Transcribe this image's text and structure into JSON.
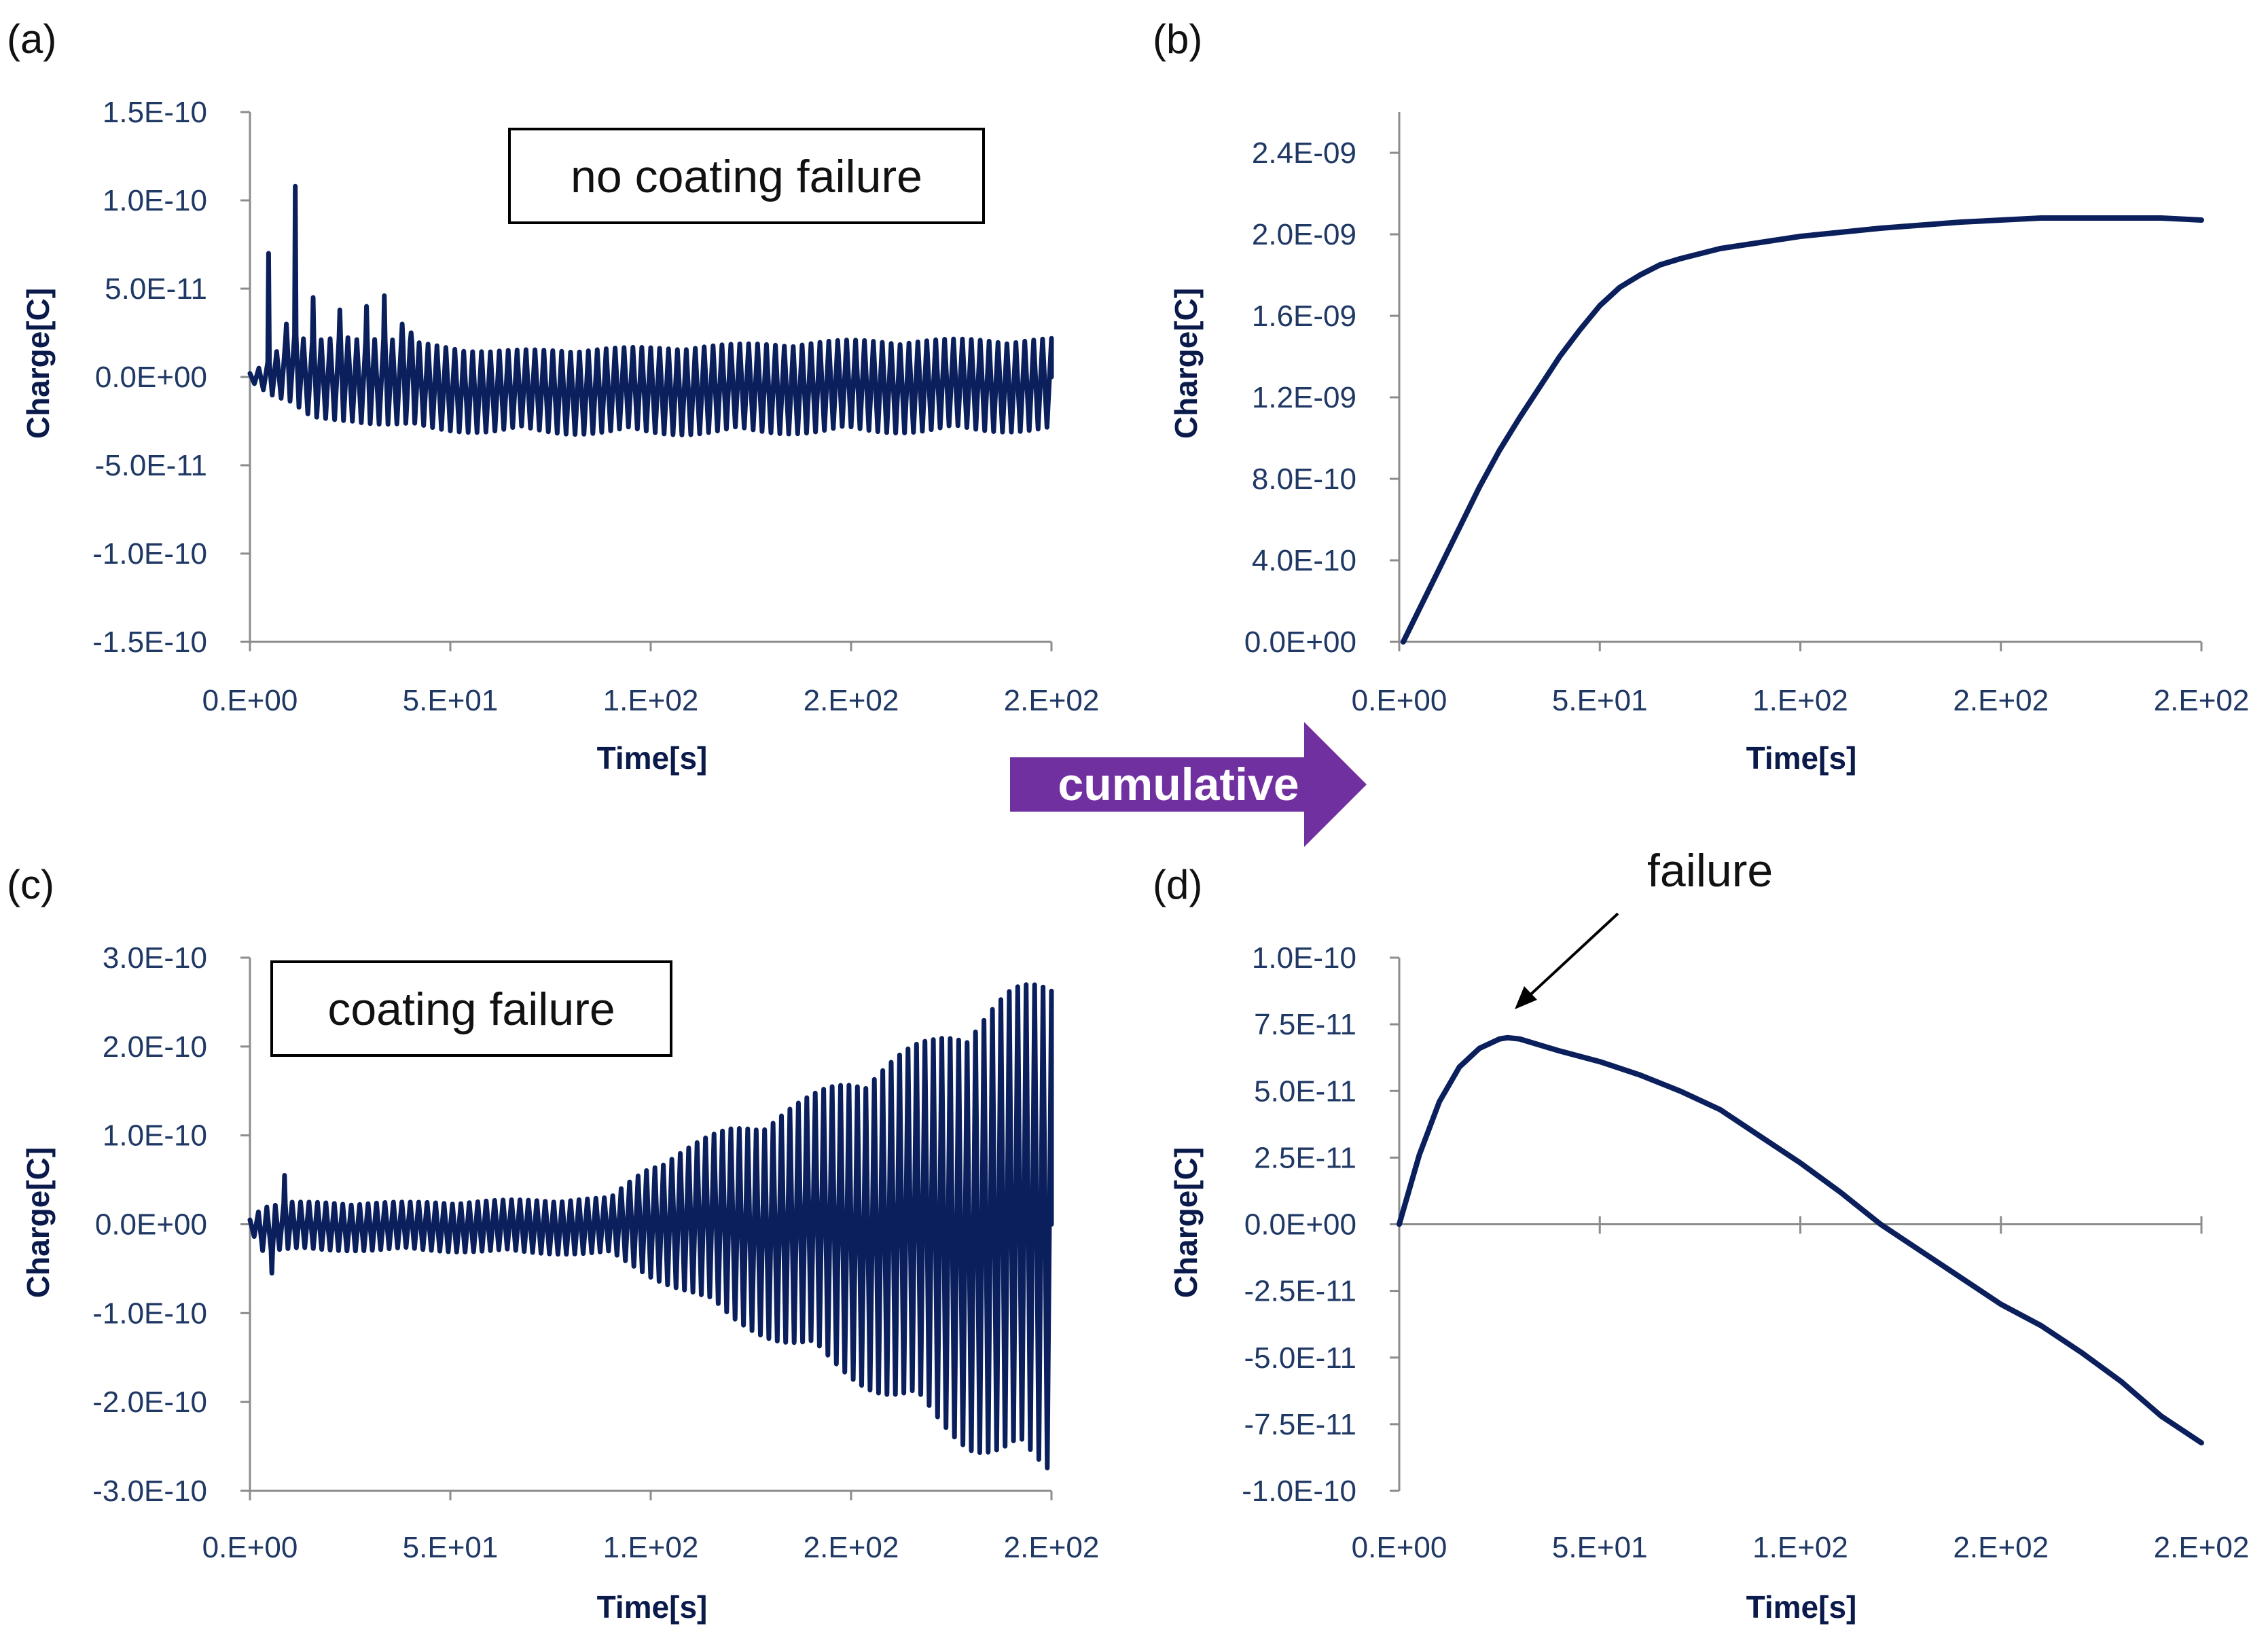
{
  "arrow_label": "cumulative",
  "colors": {
    "series": "#0a1f5c",
    "axis": "#8c8c8c",
    "tick_text": "#1f3864",
    "arrow": "#7030a0"
  },
  "chart_data": [
    {
      "panel": "(a)",
      "type": "line",
      "title": "",
      "annotation_box": "no coating failure",
      "xlabel": "Time[s]",
      "ylabel": "Charge[C]",
      "xlim": [
        0,
        200
      ],
      "ylim": [
        -1.5e-10,
        1.5e-10
      ],
      "x_tick_labels": [
        "0.E+00",
        "5.E+01",
        "1.E+02",
        "2.E+02",
        "2.E+02"
      ],
      "y_tick_labels": [
        "1.5E-10",
        "1.0E-10",
        "5.0E-11",
        "0.0E+00",
        "-5.0E-11",
        "-1.0E-10",
        "-1.5E-10"
      ],
      "y_ticks": [
        1.5e-10,
        1e-10,
        5e-11,
        0,
        -5e-11,
        -1e-10,
        -1.5e-10
      ],
      "signal": {
        "kind": "oscillation",
        "cycles": 90,
        "x_end": 200,
        "envelope_x": [
          0,
          5,
          10,
          15,
          25,
          40,
          60,
          100,
          150,
          200
        ],
        "envelope_pos": [
          2e-12,
          1e-11,
          2.5e-11,
          2e-11,
          2.5e-11,
          2e-11,
          1.5e-11,
          1.7e-11,
          2.1e-11,
          2.2e-11
        ],
        "envelope_neg": [
          -2e-12,
          -1e-11,
          -1.5e-11,
          -2.5e-11,
          -2.5e-11,
          -3e-11,
          -3.2e-11,
          -3.3e-11,
          -3.2e-11,
          -3.1e-11
        ],
        "spikes": [
          [
            5,
            7e-11
          ],
          [
            9,
            3e-11
          ],
          [
            12,
            1.08e-10
          ],
          [
            16,
            4.5e-11
          ],
          [
            22,
            3.8e-11
          ],
          [
            28,
            4e-11
          ],
          [
            33,
            4.6e-11
          ],
          [
            38,
            3e-11
          ],
          [
            41,
            2.5e-11
          ]
        ]
      }
    },
    {
      "panel": "(b)",
      "type": "line",
      "title": "",
      "xlabel": "Time[s]",
      "ylabel": "Charge[C]",
      "xlim": [
        0,
        200
      ],
      "ylim": [
        0,
        2.6e-09
      ],
      "x_tick_labels": [
        "0.E+00",
        "5.E+01",
        "1.E+02",
        "2.E+02",
        "2.E+02"
      ],
      "y_tick_labels": [
        "2.4E-09",
        "2.0E-09",
        "1.6E-09",
        "1.2E-09",
        "8.0E-10",
        "4.0E-10",
        "0.0E+00"
      ],
      "y_ticks": [
        2.4e-09,
        2e-09,
        1.6e-09,
        1.2e-09,
        8e-10,
        4e-10,
        0
      ],
      "x": [
        1,
        5,
        10,
        15,
        20,
        25,
        30,
        35,
        40,
        45,
        50,
        55,
        60,
        65,
        70,
        80,
        90,
        100,
        110,
        120,
        140,
        160,
        180,
        190,
        200
      ],
      "y": [
        0,
        1.6e-10,
        3.6e-10,
        5.6e-10,
        7.6e-10,
        9.4e-10,
        1.1e-09,
        1.25e-09,
        1.4e-09,
        1.53e-09,
        1.65e-09,
        1.74e-09,
        1.8e-09,
        1.85e-09,
        1.88e-09,
        1.93e-09,
        1.96e-09,
        1.99e-09,
        2.01e-09,
        2.03e-09,
        2.06e-09,
        2.08e-09,
        2.08e-09,
        2.08e-09,
        2.07e-09
      ]
    },
    {
      "panel": "(c)",
      "type": "line",
      "title": "",
      "annotation_box": "coating failure",
      "xlabel": "Time[s]",
      "ylabel": "Charge[C]",
      "xlim": [
        0,
        200
      ],
      "ylim": [
        -3e-10,
        3e-10
      ],
      "x_tick_labels": [
        "0.E+00",
        "5.E+01",
        "1.E+02",
        "2.E+02",
        "2.E+02"
      ],
      "y_tick_labels": [
        "3.0E-10",
        "2.0E-10",
        "1.0E-10",
        "0.0E+00",
        "-1.0E-10",
        "-2.0E-10",
        "-3.0E-10"
      ],
      "y_ticks": [
        3e-10,
        2e-10,
        1e-10,
        0,
        -1e-10,
        -2e-10,
        -3e-10
      ],
      "signal": {
        "kind": "oscillation",
        "cycles": 95,
        "x_end": 200,
        "envelope_x": [
          0,
          3,
          10,
          40,
          90,
          100,
          110,
          120,
          130,
          140,
          150,
          160,
          170,
          180,
          190,
          200
        ],
        "envelope_pos": [
          5e-12,
          2e-11,
          2.5e-11,
          2.5e-11,
          3e-11,
          7e-11,
          9e-11,
          1.1e-10,
          1.25e-10,
          1.45e-10,
          1.7e-10,
          1.9e-10,
          2.1e-10,
          2.4e-10,
          2.65e-10,
          2.8e-10
        ],
        "envelope_neg": [
          -5e-12,
          -3e-11,
          -3e-11,
          -3e-11,
          -3.5e-11,
          -6e-11,
          -8e-11,
          -1.1e-10,
          -1.3e-10,
          -1.5e-10,
          -1.75e-10,
          -2e-10,
          -2.25e-10,
          -2.55e-10,
          -2.75e-10,
          -2.85e-10
        ],
        "spikes": [
          [
            8,
            5.5e-11
          ],
          [
            6,
            -5.5e-11
          ]
        ]
      }
    },
    {
      "panel": "(d)",
      "type": "line",
      "title": "",
      "annotation": "failure",
      "xlabel": "Time[s]",
      "ylabel": "Charge[C]",
      "xlim": [
        0,
        200
      ],
      "ylim": [
        -1e-10,
        1e-10
      ],
      "x_tick_labels": [
        "0.E+00",
        "5.E+01",
        "1.E+02",
        "2.E+02",
        "2.E+02"
      ],
      "y_tick_labels": [
        "1.0E-10",
        "7.5E-11",
        "5.0E-11",
        "2.5E-11",
        "0.0E+00",
        "-2.5E-11",
        "-5.0E-11",
        "-7.5E-11",
        "-1.0E-10"
      ],
      "y_ticks": [
        1e-10,
        7.5e-11,
        5e-11,
        2.5e-11,
        0,
        -2.5e-11,
        -5e-11,
        -7.5e-11,
        -1e-10
      ],
      "x": [
        0,
        5,
        10,
        15,
        20,
        25,
        27,
        30,
        40,
        50,
        60,
        70,
        80,
        90,
        100,
        110,
        120,
        130,
        140,
        150,
        160,
        170,
        180,
        190,
        200
      ],
      "y": [
        0,
        2.6e-11,
        4.6e-11,
        5.9e-11,
        6.6e-11,
        6.95e-11,
        7e-11,
        6.95e-11,
        6.5e-11,
        6.1e-11,
        5.6e-11,
        5e-11,
        4.3e-11,
        3.3e-11,
        2.3e-11,
        1.2e-11,
        0,
        -1e-11,
        -2e-11,
        -3e-11,
        -3.8e-11,
        -4.8e-11,
        -5.9e-11,
        -7.2e-11,
        -8.2e-11
      ]
    }
  ]
}
